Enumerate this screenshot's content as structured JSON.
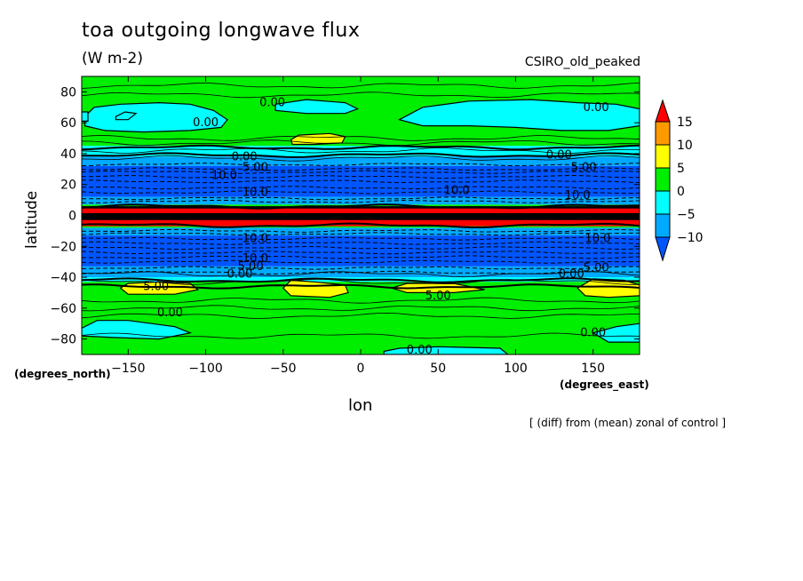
{
  "title": "toa outgoing longwave flux",
  "units": "(W m-2)",
  "model": "CSIRO_old_peaked",
  "footnote": "[ (diff) from (mean) zonal of control ]",
  "colors": {
    "red": "#ff0000",
    "orange": "#ff9900",
    "yellow": "#ffff00",
    "green": "#00ee00",
    "cyan": "#00ffff",
    "sky": "#00aaff",
    "blue": "#0055ff"
  },
  "chart_data": {
    "type": "heatmap",
    "xlabel": "lon",
    "ylabel": "latitude",
    "x_units": "(degrees_east)",
    "y_units": "(degrees_north)",
    "xlim": [
      -180,
      180
    ],
    "ylim": [
      -90,
      90
    ],
    "x_ticks": [
      -150,
      -100,
      -50,
      0,
      50,
      100,
      150
    ],
    "y_ticks": [
      80,
      60,
      40,
      20,
      0,
      -20,
      -40,
      -60,
      -80
    ],
    "colorbar": {
      "levels": [
        15,
        10,
        5,
        0,
        -5,
        -10
      ],
      "colors": [
        "#ff0000",
        "#ff9900",
        "#ffff00",
        "#00ee00",
        "#00ffff",
        "#00aaff",
        "#0055ff"
      ]
    },
    "zonal_bands": [
      {
        "lat_min": 45,
        "lat_max": 90,
        "value": 2
      },
      {
        "lat_min": 38,
        "lat_max": 45,
        "value": -3
      },
      {
        "lat_min": 32,
        "lat_max": 38,
        "value": -7
      },
      {
        "lat_min": 12,
        "lat_max": 32,
        "value": -12
      },
      {
        "lat_min": 7,
        "lat_max": 12,
        "value": -7
      },
      {
        "lat_min": 6,
        "lat_max": 7,
        "value": 3
      },
      {
        "lat_min": -6,
        "lat_max": 6,
        "value": 30
      },
      {
        "lat_min": -8,
        "lat_max": -6,
        "value": 3
      },
      {
        "lat_min": -13,
        "lat_max": -8,
        "value": -7
      },
      {
        "lat_min": -33,
        "lat_max": -13,
        "value": -12
      },
      {
        "lat_min": -40,
        "lat_max": -33,
        "value": -7
      },
      {
        "lat_min": -43,
        "lat_max": -40,
        "value": -3
      },
      {
        "lat_min": -90,
        "lat_max": -43,
        "value": 2
      }
    ],
    "red_stripes": [
      {
        "lat_min": 1.5,
        "lat_max": 4.5
      },
      {
        "lat_min": -7,
        "lat_max": -3
      }
    ],
    "patches": [
      {
        "value": -3,
        "points": [
          [
            -178,
            64
          ],
          [
            -172,
            70
          ],
          [
            -155,
            72
          ],
          [
            -130,
            73
          ],
          [
            -110,
            72
          ],
          [
            -95,
            68
          ],
          [
            -86,
            62
          ],
          [
            -90,
            57
          ],
          [
            -110,
            55
          ],
          [
            -140,
            54
          ],
          [
            -165,
            55
          ],
          [
            -178,
            58
          ]
        ]
      },
      {
        "value": -3,
        "points": [
          [
            -158,
            64
          ],
          [
            -152,
            67
          ],
          [
            -145,
            66
          ],
          [
            -150,
            62
          ],
          [
            -158,
            62
          ]
        ]
      },
      {
        "value": -3,
        "points": [
          [
            -55,
            72
          ],
          [
            -35,
            75
          ],
          [
            -10,
            73
          ],
          [
            -2,
            69
          ],
          [
            -10,
            66
          ],
          [
            -35,
            66
          ],
          [
            -55,
            68
          ]
        ]
      },
      {
        "value": -3,
        "points": [
          [
            25,
            62
          ],
          [
            40,
            70
          ],
          [
            70,
            74
          ],
          [
            110,
            75
          ],
          [
            140,
            73
          ],
          [
            165,
            72
          ],
          [
            180,
            69
          ],
          [
            180,
            58
          ],
          [
            160,
            55
          ],
          [
            130,
            55
          ],
          [
            100,
            57
          ],
          [
            70,
            58
          ],
          [
            40,
            58
          ]
        ]
      },
      {
        "value": -3,
        "points": [
          [
            -180,
            67
          ],
          [
            -176,
            67
          ],
          [
            -176,
            61
          ],
          [
            -180,
            61
          ]
        ]
      },
      {
        "value": 7,
        "points": [
          [
            -45,
            49
          ],
          [
            -40,
            52
          ],
          [
            -20,
            53
          ],
          [
            -10,
            51
          ],
          [
            -12,
            47
          ],
          [
            -30,
            46
          ],
          [
            -44,
            46
          ]
        ]
      },
      {
        "value": 7,
        "points": [
          [
            -155,
            -47
          ],
          [
            -150,
            -44
          ],
          [
            -130,
            -43
          ],
          [
            -110,
            -44
          ],
          [
            -105,
            -48
          ],
          [
            -120,
            -51
          ],
          [
            -150,
            -51
          ]
        ]
      },
      {
        "value": 7,
        "points": [
          [
            -50,
            -47
          ],
          [
            -45,
            -42
          ],
          [
            -30,
            -43
          ],
          [
            -10,
            -45
          ],
          [
            -8,
            -50
          ],
          [
            -20,
            -53
          ],
          [
            -45,
            -52
          ]
        ]
      },
      {
        "value": 7,
        "points": [
          [
            20,
            -47
          ],
          [
            30,
            -44
          ],
          [
            60,
            -44
          ],
          [
            80,
            -48
          ],
          [
            60,
            -50
          ],
          [
            30,
            -50
          ]
        ]
      },
      {
        "value": 7,
        "points": [
          [
            140,
            -47
          ],
          [
            150,
            -41
          ],
          [
            170,
            -42
          ],
          [
            180,
            -45
          ],
          [
            180,
            -52
          ],
          [
            160,
            -53
          ],
          [
            145,
            -52
          ]
        ]
      },
      {
        "value": -3,
        "points": [
          [
            -180,
            -73
          ],
          [
            -170,
            -68
          ],
          [
            -150,
            -68
          ],
          [
            -120,
            -72
          ],
          [
            -110,
            -76
          ],
          [
            -130,
            -80
          ],
          [
            -160,
            -79
          ],
          [
            -180,
            -78
          ]
        ]
      },
      {
        "value": -3,
        "points": [
          [
            150,
            -76
          ],
          [
            165,
            -72
          ],
          [
            180,
            -70
          ],
          [
            180,
            -82
          ],
          [
            160,
            -82
          ]
        ]
      },
      {
        "value": -3,
        "points": [
          [
            15,
            -88
          ],
          [
            25,
            -86
          ],
          [
            50,
            -85
          ],
          [
            90,
            -86
          ],
          [
            95,
            -90
          ],
          [
            15,
            -90
          ]
        ]
      }
    ],
    "dashed_contours": [
      33,
      30,
      28,
      25,
      22,
      18,
      15,
      11,
      9,
      -10,
      -12,
      -15,
      -18,
      -21,
      -24,
      -27,
      -30,
      -34,
      -37
    ],
    "solid_contours": [
      84,
      78,
      50,
      47,
      42,
      37,
      -38,
      -43,
      -55,
      -60,
      -65,
      -78
    ],
    "bold_contours": [
      44,
      39,
      5.8,
      -6.5,
      -42,
      -46
    ],
    "contour_labels": [
      {
        "text": "0.00",
        "lon": -57,
        "lat": 73
      },
      {
        "text": "0.00",
        "lon": -100,
        "lat": 60
      },
      {
        "text": "0.00",
        "lon": 152,
        "lat": 70
      },
      {
        "text": "0.00",
        "lon": -75,
        "lat": 38
      },
      {
        "text": "5.00",
        "lon": -68,
        "lat": 31
      },
      {
        "text": "10.0",
        "lon": -88,
        "lat": 26
      },
      {
        "text": "10.0",
        "lon": 62,
        "lat": 16
      },
      {
        "text": "10.0",
        "lon": -68,
        "lat": 15
      },
      {
        "text": "0.00",
        "lon": 128,
        "lat": 39
      },
      {
        "text": "5.00",
        "lon": 144,
        "lat": 31
      },
      {
        "text": "10.0",
        "lon": 140,
        "lat": 13
      },
      {
        "text": "10.0",
        "lon": -68,
        "lat": -15
      },
      {
        "text": "10.0",
        "lon": -68,
        "lat": -28
      },
      {
        "text": "5.00",
        "lon": -71,
        "lat": -33
      },
      {
        "text": "0.00",
        "lon": -78,
        "lat": -38
      },
      {
        "text": "10.0",
        "lon": 153,
        "lat": -15
      },
      {
        "text": "5.00",
        "lon": 152,
        "lat": -34
      },
      {
        "text": "0.00",
        "lon": 136,
        "lat": -38
      },
      {
        "text": "5.00",
        "lon": -132,
        "lat": -46
      },
      {
        "text": "5.00",
        "lon": 50,
        "lat": -52
      },
      {
        "text": "0.00",
        "lon": -123,
        "lat": -63
      },
      {
        "text": "0.00",
        "lon": 150,
        "lat": -76
      },
      {
        "text": "0.00",
        "lon": 38,
        "lat": -87
      }
    ]
  }
}
